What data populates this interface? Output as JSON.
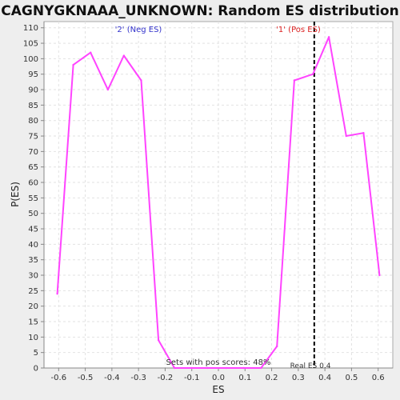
{
  "chart_data": {
    "type": "line",
    "title": "CAGNYGKNAAA_UNKNOWN: Random ES distribution",
    "xlabel": "ES",
    "ylabel": "P(ES)",
    "xlim": [
      -0.655,
      0.655
    ],
    "ylim": [
      0,
      112
    ],
    "x_ticks": [
      -0.6,
      -0.5,
      -0.4,
      -0.3,
      -0.2,
      -0.1,
      0.0,
      0.1,
      0.2,
      0.3,
      0.4,
      0.5,
      0.6
    ],
    "x_tick_labels": [
      "-0.6",
      "-0.5",
      "-0.4",
      "-0.3",
      "-0.2",
      "-0.1",
      "0.0",
      "0.1",
      "0.2",
      "0.3",
      "0.4",
      "0.5",
      "0.6"
    ],
    "y_ticks": [
      0,
      5,
      10,
      15,
      20,
      25,
      30,
      35,
      40,
      45,
      50,
      55,
      60,
      65,
      70,
      75,
      80,
      85,
      90,
      95,
      100,
      105,
      110
    ],
    "grid": true,
    "series": [
      {
        "color": "#ff44ff",
        "x": [
          -0.605,
          -0.545,
          -0.48,
          -0.415,
          -0.355,
          -0.29,
          -0.225,
          -0.165,
          -0.1,
          -0.04,
          0.03,
          0.095,
          0.16,
          0.22,
          0.285,
          0.355,
          0.415,
          0.48,
          0.545,
          0.605
        ],
        "y": [
          24,
          98,
          102,
          90,
          101,
          93,
          9,
          0,
          0,
          0,
          0,
          0,
          0,
          7,
          93,
          95,
          107,
          75,
          76,
          30
        ]
      }
    ],
    "annotations": {
      "neg_label": "'2' (Neg ES)",
      "pos_label": "'1' (Pos ES)",
      "pos_scores": "Sets with pos scores: 48%",
      "real_es_label": "Real ES 0.4",
      "real_es_value": 0.36
    },
    "colors": {
      "line": "#ff44ff",
      "neg_label": "#3333cc",
      "pos_label": "#dd2222",
      "real_es_line": "#000000"
    }
  }
}
